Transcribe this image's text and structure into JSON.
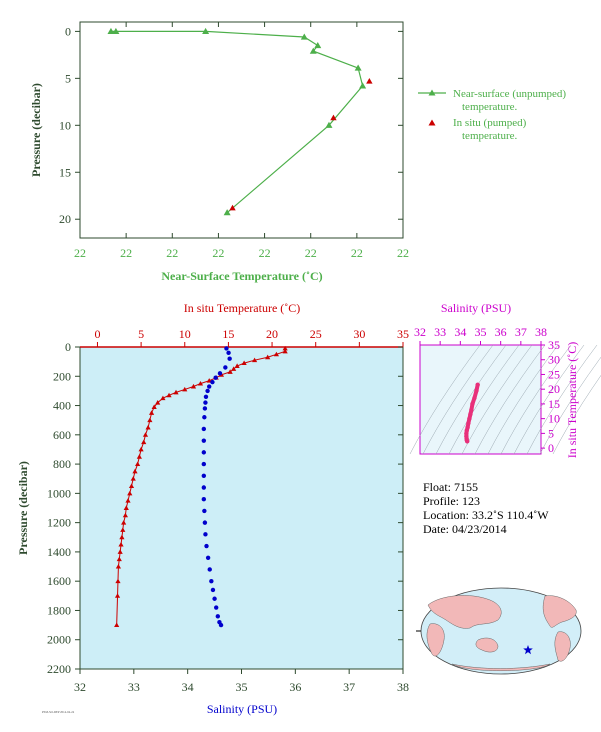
{
  "colors": {
    "green": "#4daf4a",
    "dark_green": "#2e4a2e",
    "red": "#cc0000",
    "blue": "#0000cc",
    "magenta": "#cc00cc",
    "pink": "#e8307a",
    "panel_bg": "#cdeef7",
    "land": "#f2b8b8",
    "ocean": "#d2eef8"
  },
  "top_chart": {
    "ylabel": "Pressure (decibar)",
    "xlabel": "Near-Surface Temperature (˚C)",
    "x_tick_labels": [
      "22",
      "22",
      "22",
      "22",
      "22",
      "22",
      "22",
      "22"
    ],
    "y_tick_labels": [
      "0",
      "5",
      "10",
      "15",
      "20"
    ],
    "legend_line": "Near-surface (unpumped) temperature.",
    "legend_line_1": "Near-surface (unpumped)",
    "legend_line_2": "temperature.",
    "legend_point_1": "In situ (pumped)",
    "legend_point_2": "temperature."
  },
  "main_chart": {
    "ylabel": "Pressure (decibar)",
    "top_xlabel": "In situ Temperature (˚C)",
    "bottom_xlabel": "Salinity (PSU)",
    "temp_tick_labels": [
      "0",
      "5",
      "10",
      "15",
      "20",
      "25",
      "30",
      "35"
    ],
    "sal_tick_labels": [
      "32",
      "33",
      "34",
      "35",
      "36",
      "37",
      "38"
    ],
    "pressure_tick_labels": [
      "0",
      "200",
      "400",
      "600",
      "800",
      "1000",
      "1200",
      "1400",
      "1600",
      "1800",
      "2000",
      "2200"
    ]
  },
  "ts_chart": {
    "title": "Salinity (PSU)",
    "ylabel": "In situ Temperature (˚C)",
    "sal_tick_labels": [
      "32",
      "33",
      "34",
      "35",
      "36",
      "37",
      "38"
    ],
    "temp_tick_labels": [
      "0",
      "5",
      "10",
      "15",
      "20",
      "25",
      "30",
      "35"
    ]
  },
  "info": {
    "float": "Float:  7155",
    "profile": "Profile:  123",
    "location": "Location:  33.2˚S  110.4˚W",
    "date": "Date:  04/23/2014"
  },
  "footer_code": "PSM-SO-DEP 2014-04-24",
  "chart_data": [
    {
      "type": "line",
      "title": "",
      "xlabel": "Near-Surface Temperature (˚C)",
      "ylabel": "Pressure (decibar)",
      "xlim": [
        21.84,
        22.56
      ],
      "ylim": [
        22,
        -1
      ],
      "series": [
        {
          "name": "Near-surface (unpumped) temperature.",
          "x": [
            21.909,
            21.92,
            22.12,
            22.34,
            22.37,
            22.36,
            22.46,
            22.47,
            22.395,
            22.168
          ],
          "y": [
            0,
            0,
            0,
            0.6,
            1.5,
            2.1,
            3.9,
            5.8,
            10.0,
            19.3
          ]
        },
        {
          "name": "In situ (pumped) temperature.",
          "x": [
            22.485,
            22.405,
            22.18
          ],
          "y": [
            5.3,
            9.2,
            18.8
          ]
        }
      ]
    },
    {
      "type": "scatter",
      "title": "",
      "xlabel": "In situ Temperature (˚C)",
      "x2label": "Salinity (PSU)",
      "ylabel": "Pressure (decibar)",
      "xlim": [
        -2,
        35
      ],
      "x2lim": [
        32,
        38
      ],
      "ylim": [
        2200,
        0
      ],
      "series": [
        {
          "name": "In situ Temperature (˚C)",
          "x": [
            21.5,
            21.5,
            20.5,
            19.5,
            18.0,
            16.8,
            16.0,
            15.6,
            15.2,
            14.2,
            13.6,
            12.8,
            11.8,
            11.0,
            10.0,
            9.0,
            8.2,
            7.5,
            6.9,
            6.5,
            6.2,
            6.0,
            5.8,
            5.5,
            5.3,
            5.0,
            4.8,
            4.6,
            4.3,
            4.1,
            3.9,
            3.7,
            3.5,
            3.3,
            3.2,
            3.0,
            2.9,
            2.8,
            2.7,
            2.6,
            2.5,
            2.4,
            2.35,
            2.3,
            2.2
          ],
          "y": [
            10,
            30,
            50,
            70,
            90,
            110,
            130,
            150,
            170,
            190,
            210,
            230,
            250,
            270,
            290,
            310,
            330,
            350,
            380,
            410,
            450,
            500,
            550,
            600,
            650,
            700,
            750,
            800,
            850,
            900,
            950,
            1000,
            1050,
            1100,
            1150,
            1200,
            1250,
            1300,
            1350,
            1400,
            1450,
            1500,
            1600,
            1700,
            1900
          ]
        },
        {
          "name": "Salinity (PSU)",
          "x": [
            34.72,
            34.76,
            34.78,
            34.7,
            34.6,
            34.52,
            34.46,
            34.4,
            34.37,
            34.34,
            34.33,
            34.32,
            34.31,
            34.3,
            34.3,
            34.3,
            34.3,
            34.3,
            34.3,
            34.3,
            34.31,
            34.32,
            34.33,
            34.35,
            34.38,
            34.41,
            34.44,
            34.47,
            34.5,
            34.53,
            34.56,
            34.59,
            34.62
          ],
          "y": [
            10,
            40,
            80,
            140,
            180,
            210,
            240,
            270,
            300,
            340,
            380,
            420,
            480,
            560,
            640,
            720,
            800,
            880,
            960,
            1040,
            1120,
            1200,
            1280,
            1360,
            1440,
            1520,
            1600,
            1660,
            1720,
            1780,
            1840,
            1880,
            1900
          ]
        }
      ]
    },
    {
      "type": "scatter",
      "title": "Salinity (PSU)",
      "xlabel": "Salinity (PSU)",
      "ylabel": "In situ Temperature (˚C)",
      "xlim": [
        32,
        38
      ],
      "ylim": [
        -2,
        35
      ],
      "series": [
        {
          "name": "T-S profile",
          "x": [
            34.86,
            34.8,
            34.7,
            34.6,
            34.55,
            34.5,
            34.45,
            34.4,
            34.36,
            34.32,
            34.3,
            34.3,
            34.31,
            34.32,
            34.34
          ],
          "y": [
            21.5,
            19.5,
            17.0,
            15.0,
            13.0,
            11.5,
            10.0,
            8.5,
            7.0,
            6.0,
            5.0,
            4.0,
            3.3,
            2.7,
            2.3
          ]
        }
      ]
    }
  ]
}
